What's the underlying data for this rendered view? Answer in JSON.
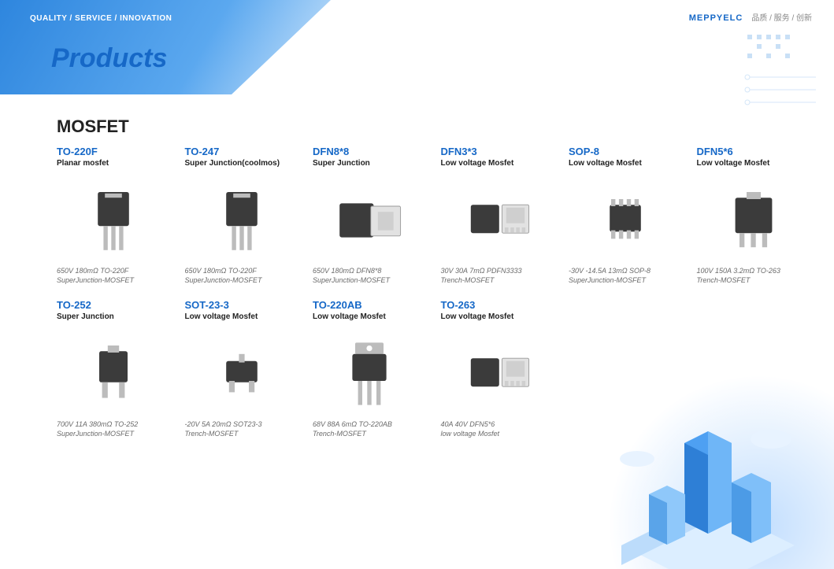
{
  "header": {
    "tagline": "QUALITY / SERVICE / INNOVATION",
    "page_title": "Products",
    "brand_logo": "MEPPYELC",
    "brand_sub": "品质 / 服务 / 创新"
  },
  "section_title": "MOSFET",
  "colors": {
    "title_blue": "#1668c7",
    "text": "#222222",
    "spec_gray": "#6a6a6a",
    "chip_body": "#3b3b3b",
    "chip_lead": "#bcbcbc",
    "chip_pad": "#e2e2e2"
  },
  "products": [
    {
      "title": "TO-220F",
      "subtitle": "Planar mosfet",
      "shape": "to220",
      "spec1": "650V 180mΩ TO-220F",
      "spec2": "SuperJunction-MOSFET"
    },
    {
      "title": "TO-247",
      "subtitle": "Super Junction(coolmos)",
      "shape": "to247",
      "spec1": "650V 180mΩ TO-220F",
      "spec2": "SuperJunction-MOSFET"
    },
    {
      "title": "DFN8*8",
      "subtitle": "Super Junction",
      "shape": "dfn88",
      "spec1": "650V 180mΩ DFN8*8",
      "spec2": "SuperJunction-MOSFET"
    },
    {
      "title": "DFN3*3",
      "subtitle": "Low voltage Mosfet",
      "shape": "dfn33",
      "spec1": "30V 30A 7mΩ PDFN3333",
      "spec2": "Trench-MOSFET"
    },
    {
      "title": "SOP-8",
      "subtitle": "Low voltage Mosfet",
      "shape": "sop8",
      "spec1": "-30V -14.5A 13mΩ SOP-8",
      "spec2": "SuperJunction-MOSFET"
    },
    {
      "title": "DFN5*6",
      "subtitle": "Low voltage Mosfet",
      "shape": "to263",
      "spec1": "100V 150A 3.2mΩ TO-263",
      "spec2": "Trench-MOSFET"
    },
    {
      "title": "TO-252",
      "subtitle": "Super Junction",
      "shape": "to252",
      "spec1": "700V 11A 380mΩ TO-252",
      "spec2": "SuperJunction-MOSFET"
    },
    {
      "title": "SOT-23-3",
      "subtitle": "Low voltage Mosfet",
      "shape": "sot23",
      "spec1": "-20V 5A 20mΩ SOT23-3",
      "spec2": "Trench-MOSFET"
    },
    {
      "title": "TO-220AB",
      "subtitle": "Low voltage Mosfet",
      "shape": "to220ab",
      "spec1": "68V 88A 6mΩ TO-220AB",
      "spec2": "Trench-MOSFET"
    },
    {
      "title": "TO-263",
      "subtitle": "Low voltage Mosfet",
      "shape": "dfn33",
      "spec1": "40A 40V DFN5*6",
      "spec2": "low voltage Mosfet"
    },
    {
      "blank": true
    },
    {
      "blank": true
    }
  ]
}
